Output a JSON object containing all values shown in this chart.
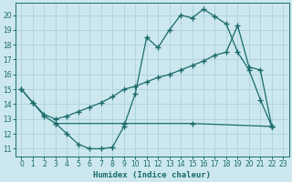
{
  "bg_color": "#cce8ee",
  "grid_color": "#b0d4dc",
  "line_color": "#1a6b6b",
  "line_width": 0.9,
  "marker": "+",
  "marker_size": 4,
  "marker_ew": 1.0,
  "xlabel": "Humidex (Indice chaleur)",
  "xlabel_fontsize": 6.5,
  "xlim": [
    -0.5,
    23.5
  ],
  "ylim": [
    10.5,
    20.8
  ],
  "xticks": [
    0,
    1,
    2,
    3,
    4,
    5,
    6,
    7,
    8,
    9,
    10,
    11,
    12,
    13,
    14,
    15,
    16,
    17,
    18,
    19,
    20,
    21,
    22,
    23
  ],
  "yticks": [
    11,
    12,
    13,
    14,
    15,
    16,
    17,
    18,
    19,
    20
  ],
  "tick_fontsize": 5.5,
  "line1_x": [
    0,
    1,
    2,
    3,
    4,
    5,
    6,
    7,
    8,
    9,
    10,
    11,
    12,
    13,
    14,
    15,
    16,
    17,
    18,
    19,
    20,
    21,
    22
  ],
  "line1_y": [
    15.0,
    14.1,
    13.2,
    12.7,
    12.0,
    11.3,
    11.0,
    11.0,
    11.1,
    12.5,
    14.7,
    18.5,
    17.8,
    19.0,
    20.0,
    19.8,
    20.4,
    19.9,
    19.4,
    17.5,
    16.3,
    14.3,
    12.5
  ],
  "line2_x": [
    0,
    1,
    2,
    3,
    4,
    5,
    6,
    7,
    8,
    9,
    10,
    11,
    12,
    13,
    14,
    15,
    16,
    17,
    18,
    19,
    20,
    21,
    22
  ],
  "line2_y": [
    15.0,
    14.1,
    13.3,
    13.0,
    13.2,
    13.5,
    13.8,
    14.1,
    14.5,
    15.0,
    15.2,
    15.5,
    15.8,
    16.0,
    16.3,
    16.6,
    16.9,
    17.3,
    17.5,
    19.3,
    16.5,
    16.3,
    12.5
  ],
  "line3_x": [
    3,
    9,
    15,
    22
  ],
  "line3_y": [
    12.7,
    12.7,
    12.7,
    12.5
  ]
}
